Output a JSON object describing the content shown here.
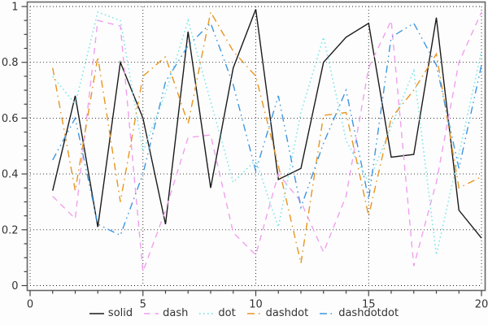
{
  "chart_data": {
    "type": "line",
    "title": "",
    "xlabel": "",
    "ylabel": "",
    "xlim": [
      0,
      20
    ],
    "ylim": [
      0,
      1
    ],
    "x_major_ticks": [
      0,
      5,
      10,
      15,
      20
    ],
    "x_tick_labels": [
      "0",
      "5",
      "10",
      "15",
      "20"
    ],
    "x_minor_step": 1,
    "y_major_ticks": [
      0,
      0.2,
      0.4,
      0.6,
      0.8,
      1
    ],
    "y_tick_labels": [
      "0",
      "0.2",
      "0.4",
      "0.6",
      "0.8",
      "1"
    ],
    "y_minor_step": 0.05,
    "grid": "dotted-major-both-axes",
    "legend_position": "bottom-center",
    "border_color": "#666666",
    "grid_color": "#222222",
    "tick_label_color": "#333333",
    "x": [
      1,
      2,
      3,
      4,
      5,
      6,
      7,
      8,
      9,
      10,
      11,
      12,
      13,
      14,
      15,
      16,
      17,
      18,
      19,
      20
    ],
    "series": [
      {
        "name": "solid",
        "line_style": "solid",
        "color": "#1a1a1a",
        "values": [
          0.34,
          0.68,
          0.21,
          0.8,
          0.6,
          0.22,
          0.91,
          0.35,
          0.78,
          0.99,
          0.38,
          0.42,
          0.8,
          0.89,
          0.94,
          0.46,
          0.47,
          0.96,
          0.27,
          0.17
        ]
      },
      {
        "name": "dash",
        "line_style": "dash",
        "color": "#f0a0ee",
        "values": [
          0.32,
          0.24,
          0.95,
          0.93,
          0.05,
          0.27,
          0.53,
          0.54,
          0.19,
          0.11,
          0.4,
          0.3,
          0.12,
          0.32,
          0.78,
          0.95,
          0.07,
          0.37,
          0.8,
          0.98
        ]
      },
      {
        "name": "dot",
        "line_style": "dot",
        "color": "#7fe6e6",
        "values": [
          0.75,
          0.65,
          0.98,
          0.95,
          0.48,
          0.69,
          0.95,
          0.66,
          0.37,
          0.45,
          0.21,
          0.62,
          0.89,
          0.52,
          0.37,
          0.57,
          0.77,
          0.11,
          0.47,
          0.84
        ]
      },
      {
        "name": "dashdot",
        "line_style": "dashdot",
        "color": "#e8951f",
        "values": [
          0.78,
          0.34,
          0.82,
          0.3,
          0.75,
          0.82,
          0.58,
          0.98,
          0.84,
          0.75,
          0.43,
          0.08,
          0.61,
          0.62,
          0.25,
          0.6,
          0.7,
          0.83,
          0.35,
          0.39
        ]
      },
      {
        "name": "dashdotdot",
        "line_style": "dashdotdot",
        "color": "#3e96e0",
        "values": [
          0.45,
          0.6,
          0.22,
          0.18,
          0.4,
          0.73,
          0.86,
          0.94,
          0.72,
          0.41,
          0.68,
          0.28,
          0.51,
          0.7,
          0.31,
          0.89,
          0.94,
          0.79,
          0.42,
          0.79
        ]
      }
    ]
  },
  "legend": {
    "items": [
      "solid",
      "dash",
      "dot",
      "dashdot",
      "dashdotdot"
    ]
  }
}
